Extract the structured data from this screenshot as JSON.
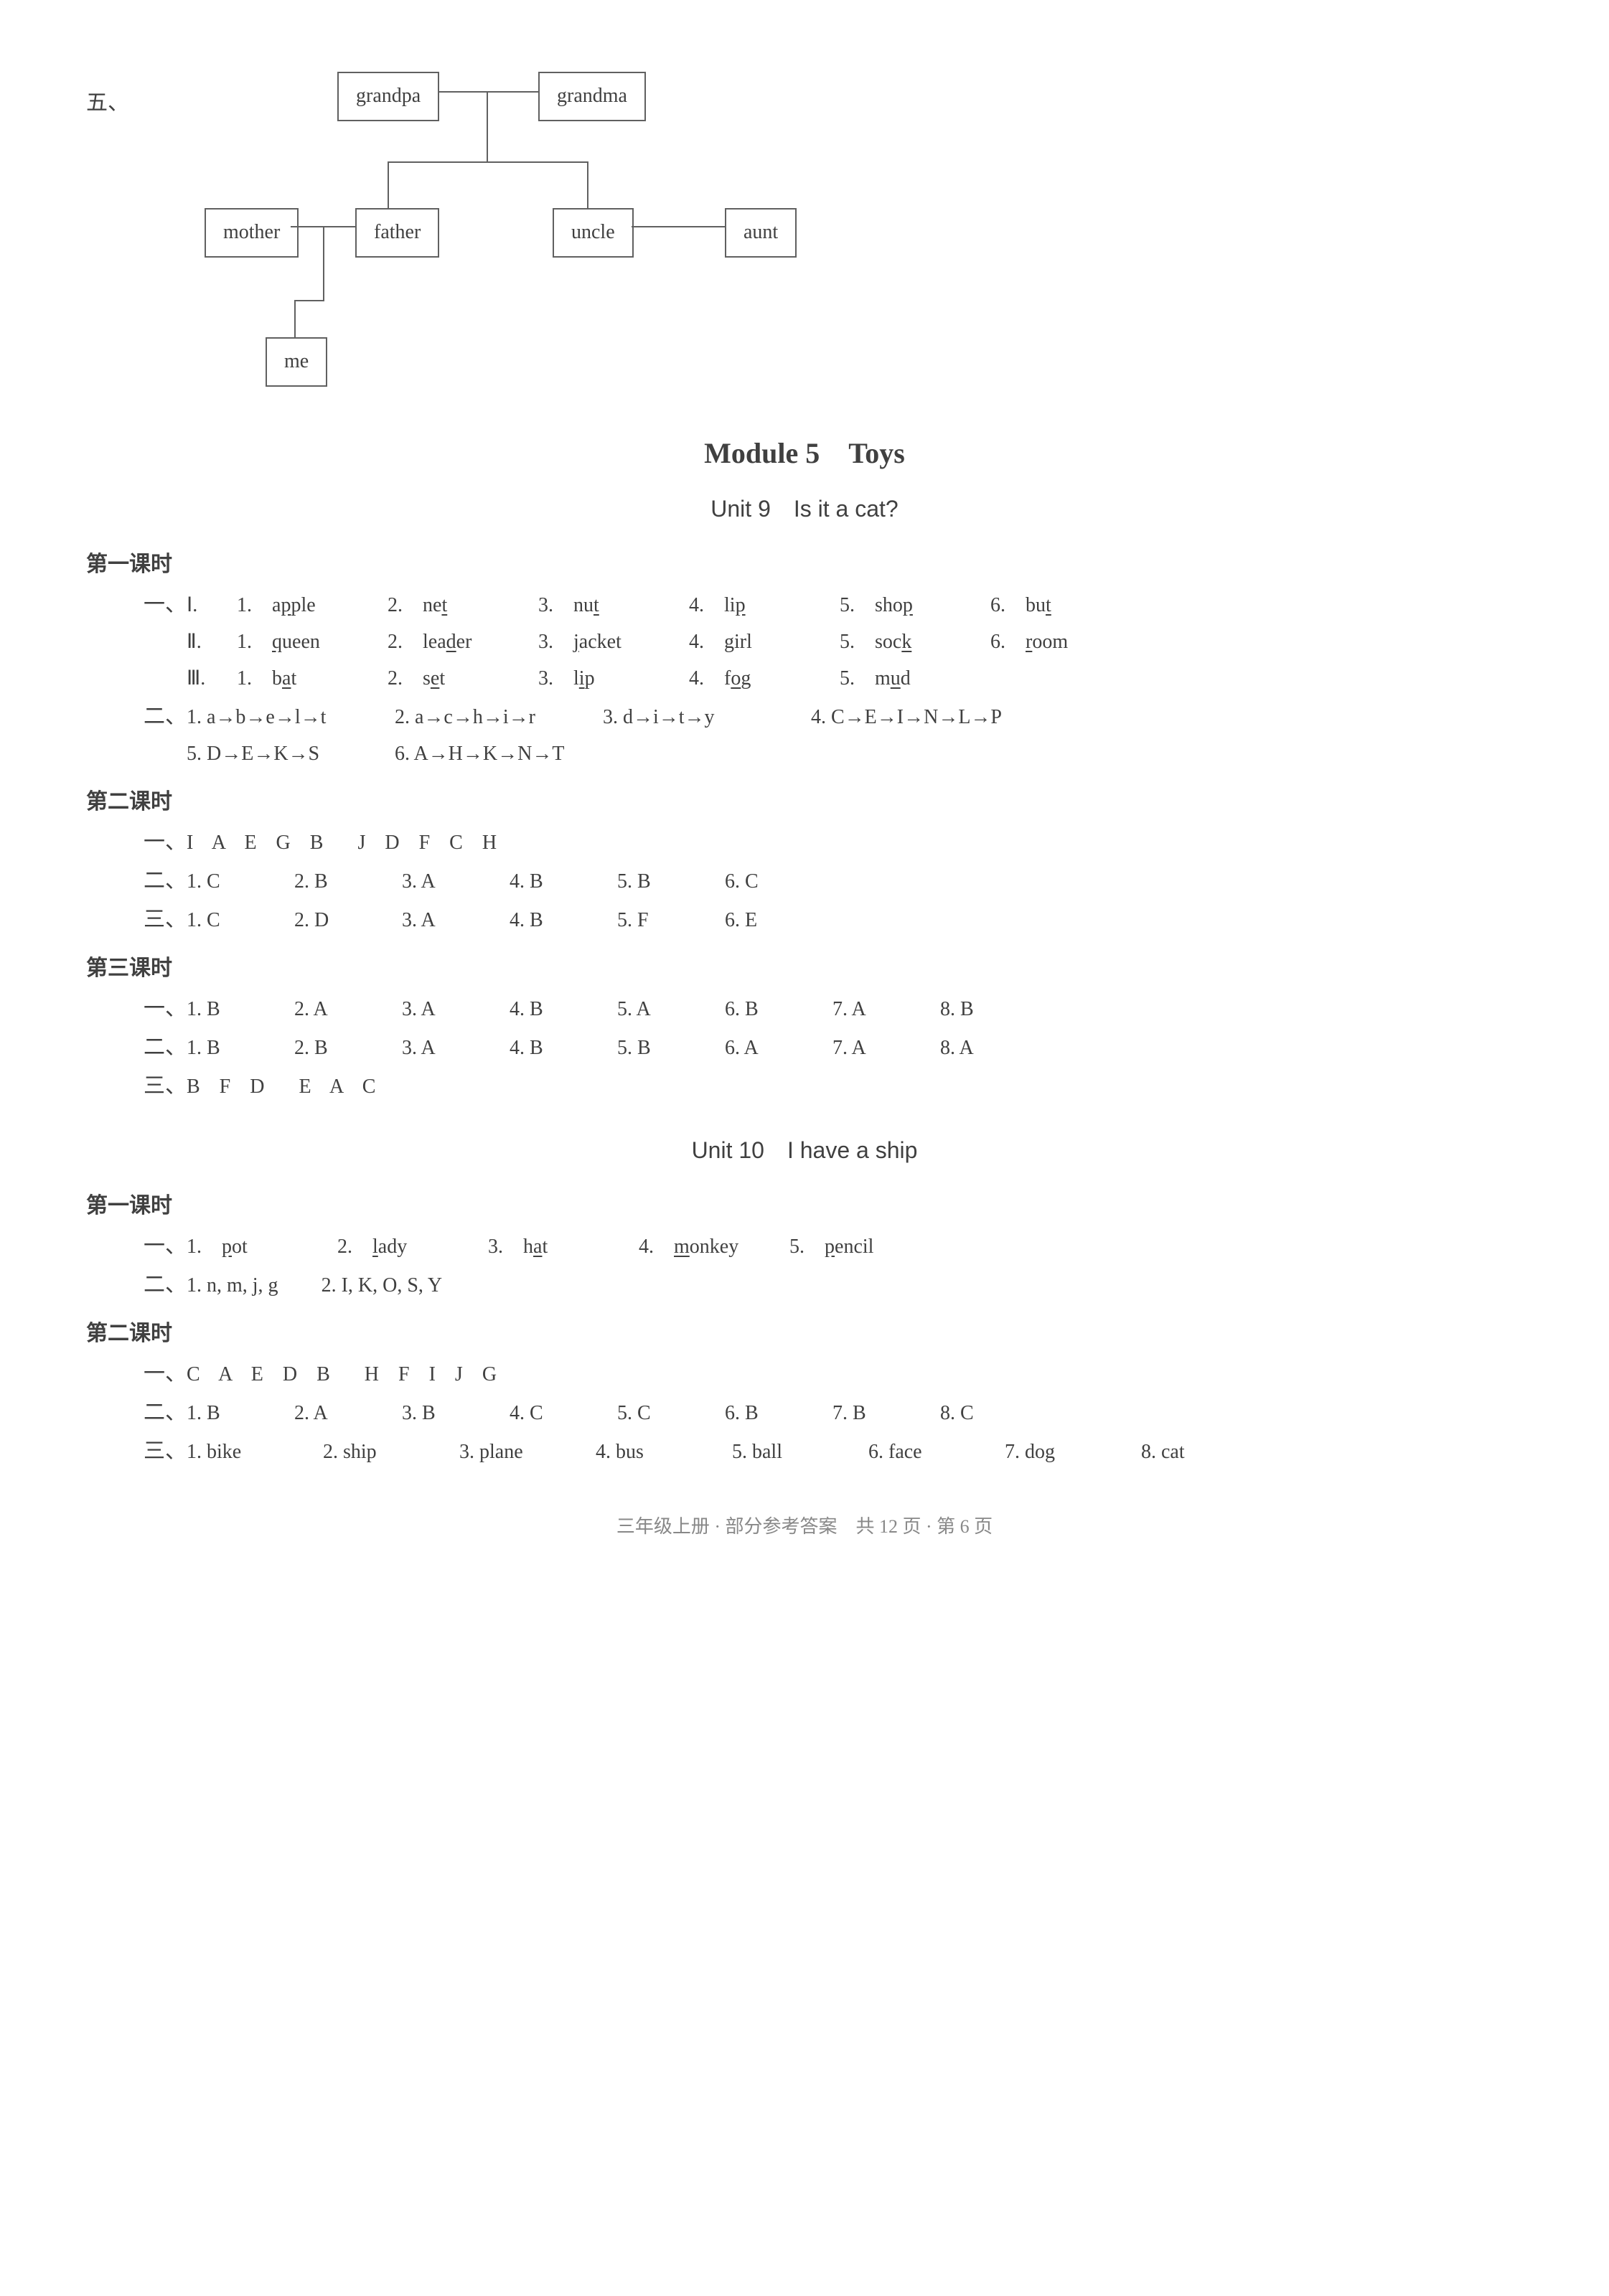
{
  "section5": {
    "label": "五、",
    "tree": {
      "nodes": {
        "grandpa": "grandpa",
        "grandma": "grandma",
        "mother": "mother",
        "father": "father",
        "uncle": "uncle",
        "aunt": "aunt",
        "me": "me"
      }
    }
  },
  "module": {
    "title": "Module 5　Toys",
    "unit9": {
      "title": "Unit 9　Is it a cat?",
      "lesson1": {
        "header": "第一课时",
        "part1": {
          "label": "一、",
          "groups": [
            {
              "roman": "Ⅰ.",
              "items": [
                {
                  "n": "1.",
                  "pre": "a",
                  "u": "p",
                  "post": "ple"
                },
                {
                  "n": "2.",
                  "pre": "ne",
                  "u": "t",
                  "post": ""
                },
                {
                  "n": "3.",
                  "pre": "nu",
                  "u": "t",
                  "post": ""
                },
                {
                  "n": "4.",
                  "pre": "li",
                  "u": "p",
                  "post": ""
                },
                {
                  "n": "5.",
                  "pre": "sho",
                  "u": "p",
                  "post": ""
                },
                {
                  "n": "6.",
                  "pre": "bu",
                  "u": "t",
                  "post": ""
                }
              ]
            },
            {
              "roman": "Ⅱ.",
              "items": [
                {
                  "n": "1.",
                  "pre": "",
                  "u": "q",
                  "post": "ueen"
                },
                {
                  "n": "2.",
                  "pre": "lea",
                  "u": "d",
                  "post": "er"
                },
                {
                  "n": "3.",
                  "pre": "",
                  "u": "j",
                  "post": "acket"
                },
                {
                  "n": "4.",
                  "pre": "",
                  "u": "g",
                  "post": "irl"
                },
                {
                  "n": "5.",
                  "pre": "soc",
                  "u": "k",
                  "post": ""
                },
                {
                  "n": "6.",
                  "pre": "",
                  "u": "r",
                  "post": "oom"
                }
              ]
            },
            {
              "roman": "Ⅲ.",
              "items": [
                {
                  "n": "1.",
                  "pre": "b",
                  "u": "a",
                  "post": "t"
                },
                {
                  "n": "2.",
                  "pre": "s",
                  "u": "e",
                  "post": "t"
                },
                {
                  "n": "3.",
                  "pre": "l",
                  "u": "i",
                  "post": "p"
                },
                {
                  "n": "4.",
                  "pre": "f",
                  "u": "o",
                  "post": "g"
                },
                {
                  "n": "5.",
                  "pre": "m",
                  "u": "u",
                  "post": "d"
                }
              ]
            }
          ]
        },
        "part2": {
          "label": "二、",
          "row1": [
            {
              "n": "1.",
              "seq": "a→b→e→l→t"
            },
            {
              "n": "2.",
              "seq": "a→c→h→i→r"
            },
            {
              "n": "3.",
              "seq": "d→i→t→y"
            },
            {
              "n": "4.",
              "seq": "C→E→I→N→L→P"
            }
          ],
          "row2": [
            {
              "n": "5.",
              "seq": "D→E→K→S"
            },
            {
              "n": "6.",
              "seq": "A→H→K→N→T"
            }
          ]
        }
      },
      "lesson2": {
        "header": "第二课时",
        "part1": {
          "label": "一、",
          "text": "I A E G B　J D F C H"
        },
        "part2": {
          "label": "二、",
          "items": [
            {
              "n": "1.",
              "a": "C"
            },
            {
              "n": "2.",
              "a": "B"
            },
            {
              "n": "3.",
              "a": "A"
            },
            {
              "n": "4.",
              "a": "B"
            },
            {
              "n": "5.",
              "a": "B"
            },
            {
              "n": "6.",
              "a": "C"
            }
          ]
        },
        "part3": {
          "label": "三、",
          "items": [
            {
              "n": "1.",
              "a": "C"
            },
            {
              "n": "2.",
              "a": "D"
            },
            {
              "n": "3.",
              "a": "A"
            },
            {
              "n": "4.",
              "a": "B"
            },
            {
              "n": "5.",
              "a": "F"
            },
            {
              "n": "6.",
              "a": "E"
            }
          ]
        }
      },
      "lesson3": {
        "header": "第三课时",
        "part1": {
          "label": "一、",
          "items": [
            {
              "n": "1.",
              "a": "B"
            },
            {
              "n": "2.",
              "a": "A"
            },
            {
              "n": "3.",
              "a": "A"
            },
            {
              "n": "4.",
              "a": "B"
            },
            {
              "n": "5.",
              "a": "A"
            },
            {
              "n": "6.",
              "a": "B"
            },
            {
              "n": "7.",
              "a": "A"
            },
            {
              "n": "8.",
              "a": "B"
            }
          ]
        },
        "part2": {
          "label": "二、",
          "items": [
            {
              "n": "1.",
              "a": "B"
            },
            {
              "n": "2.",
              "a": "B"
            },
            {
              "n": "3.",
              "a": "A"
            },
            {
              "n": "4.",
              "a": "B"
            },
            {
              "n": "5.",
              "a": "B"
            },
            {
              "n": "6.",
              "a": "A"
            },
            {
              "n": "7.",
              "a": "A"
            },
            {
              "n": "8.",
              "a": "A"
            }
          ]
        },
        "part3": {
          "label": "三、",
          "text": "B F D　E A C"
        }
      }
    },
    "unit10": {
      "title": "Unit 10　I have a ship",
      "lesson1": {
        "header": "第一课时",
        "part1": {
          "label": "一、",
          "items": [
            {
              "n": "1.",
              "pre": "",
              "u": "p",
              "post": "ot"
            },
            {
              "n": "2.",
              "pre": "",
              "u": "l",
              "post": "ady"
            },
            {
              "n": "3.",
              "pre": "h",
              "u": "a",
              "post": "t"
            },
            {
              "n": "4.",
              "pre": "",
              "u": "m",
              "post": "onkey"
            },
            {
              "n": "5.",
              "pre": "",
              "u": "p",
              "post": "encil"
            }
          ]
        },
        "part2": {
          "label": "二、",
          "items": [
            {
              "n": "1.",
              "text": "n, m, j, g"
            },
            {
              "n": "2.",
              "text": "I, K, O, S, Y"
            }
          ]
        }
      },
      "lesson2": {
        "header": "第二课时",
        "part1": {
          "label": "一、",
          "text": "C A E D B　H F I J G"
        },
        "part2": {
          "label": "二、",
          "items": [
            {
              "n": "1.",
              "a": "B"
            },
            {
              "n": "2.",
              "a": "A"
            },
            {
              "n": "3.",
              "a": "B"
            },
            {
              "n": "4.",
              "a": "C"
            },
            {
              "n": "5.",
              "a": "C"
            },
            {
              "n": "6.",
              "a": "B"
            },
            {
              "n": "7.",
              "a": "B"
            },
            {
              "n": "8.",
              "a": "C"
            }
          ]
        },
        "part3": {
          "label": "三、",
          "items": [
            {
              "n": "1.",
              "a": "bike"
            },
            {
              "n": "2.",
              "a": "ship"
            },
            {
              "n": "3.",
              "a": "plane"
            },
            {
              "n": "4.",
              "a": "bus"
            },
            {
              "n": "5.",
              "a": "ball"
            },
            {
              "n": "6.",
              "a": "face"
            },
            {
              "n": "7.",
              "a": "dog"
            },
            {
              "n": "8.",
              "a": "cat"
            }
          ]
        }
      }
    }
  },
  "footer": "三年级上册 · 部分参考答案　共 12 页 · 第 6 页"
}
